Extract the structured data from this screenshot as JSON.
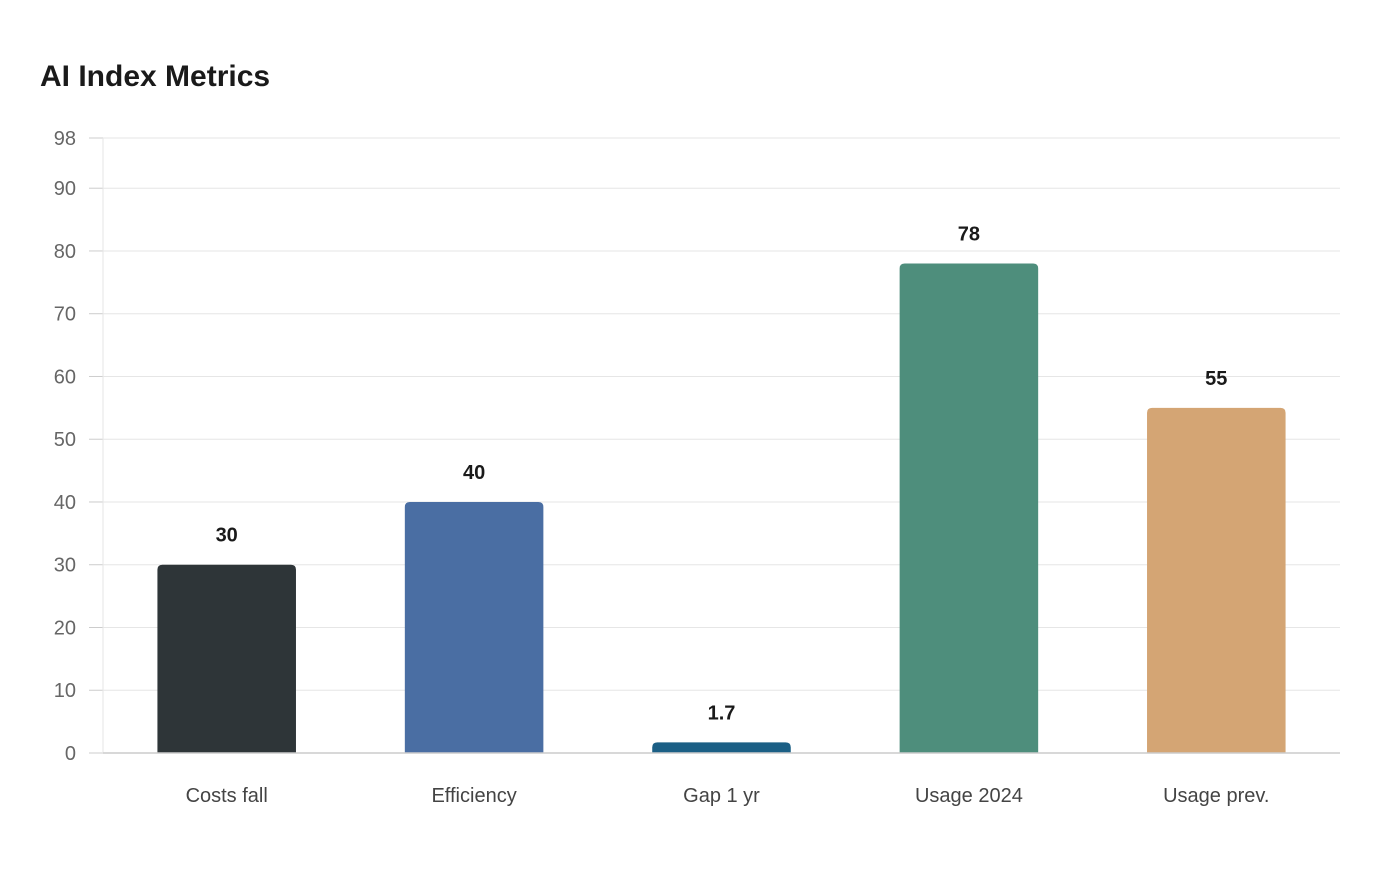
{
  "page": {
    "title": "AI Index Metrics"
  },
  "chart_data": {
    "type": "bar",
    "title": "AI Index Metrics",
    "xlabel": "",
    "ylabel": "",
    "categories": [
      "Costs fall",
      "Efficiency",
      "Gap 1 yr",
      "Usage 2024",
      "Usage prev."
    ],
    "values": [
      30,
      40,
      1.7,
      78,
      55
    ],
    "value_labels": [
      "30",
      "40",
      "1.7",
      "78",
      "55"
    ],
    "colors": [
      "#2e3538",
      "#4a6ea3",
      "#1b5f85",
      "#4e8e7c",
      "#d4a574"
    ],
    "ylim": [
      0,
      98
    ],
    "yticks": [
      0,
      10,
      20,
      30,
      40,
      50,
      60,
      70,
      80,
      90,
      98
    ],
    "grid": true,
    "legend": "none"
  }
}
